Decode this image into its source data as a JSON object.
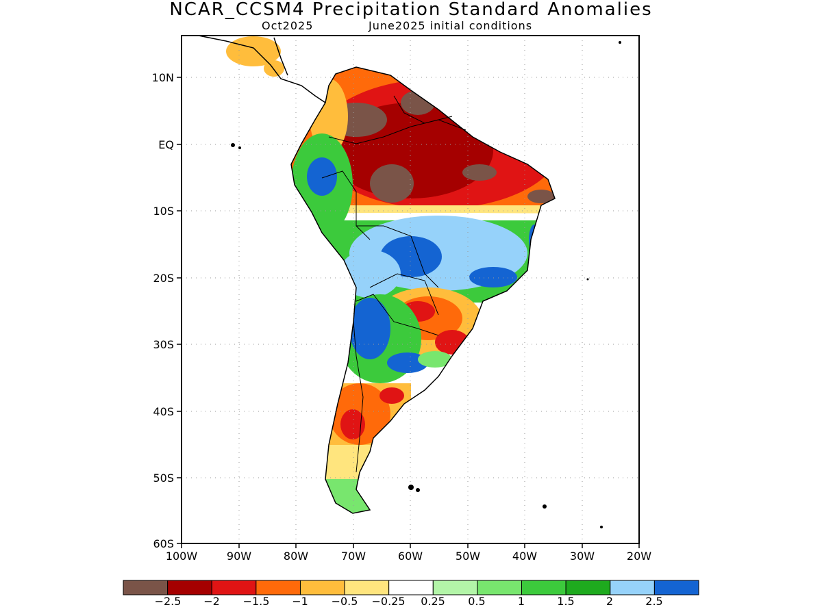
{
  "title": "NCAR_CCSM4 Precipitation Standard Anomalies",
  "subtitle_left": "Oct2025",
  "subtitle_right": "June2025 initial conditions",
  "y_axis_labels": [
    "10N",
    "EQ",
    "10S",
    "20S",
    "30S",
    "40S",
    "50S",
    "60S"
  ],
  "x_axis_labels": [
    "100W",
    "90W",
    "80W",
    "70W",
    "60W",
    "50W",
    "40W",
    "30W",
    "20W"
  ],
  "colorbar": {
    "colors": [
      "#7a5448",
      "#a50000",
      "#e01414",
      "#ff6a0a",
      "#ffbd3c",
      "#ffe57e",
      "#ffffff",
      "#b3f5a8",
      "#78e66e",
      "#3cca3c",
      "#1eaa1e",
      "#96d2fa",
      "#1464d2"
    ],
    "labels": [
      "−2.5",
      "−2",
      "−1.5",
      "−1",
      "−0.5",
      "−0.25",
      "0.25",
      "0.5",
      "1",
      "1.5",
      "2",
      "2.5"
    ]
  }
}
